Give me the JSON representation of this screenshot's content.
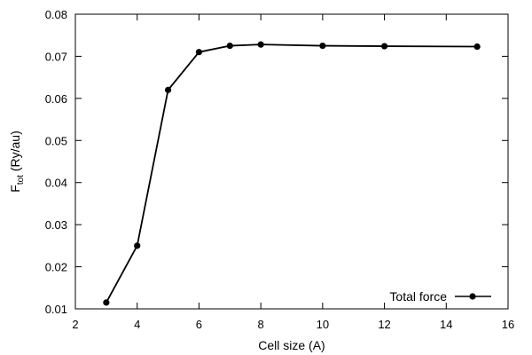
{
  "chart_data": {
    "type": "line",
    "xlabel": "Cell size (A)",
    "ylabel": {
      "main": "F",
      "sub": "tot",
      "rest": " (Ry/au)"
    },
    "xlim": [
      2,
      16
    ],
    "ylim": [
      0.01,
      0.08
    ],
    "xticks": [
      2,
      4,
      6,
      8,
      10,
      12,
      14,
      16
    ],
    "yticks": [
      "0.01",
      "0.02",
      "0.03",
      "0.04",
      "0.05",
      "0.06",
      "0.07",
      "0.08"
    ],
    "grid": false,
    "legend": "bottom-right",
    "series": [
      {
        "name": "Total force",
        "color": "#000000",
        "marker": "circle",
        "x": [
          3,
          4,
          5,
          6,
          7,
          8,
          10,
          12,
          15
        ],
        "y": [
          0.0115,
          0.025,
          0.062,
          0.071,
          0.0725,
          0.0728,
          0.0725,
          0.0724,
          0.0723
        ]
      }
    ]
  }
}
